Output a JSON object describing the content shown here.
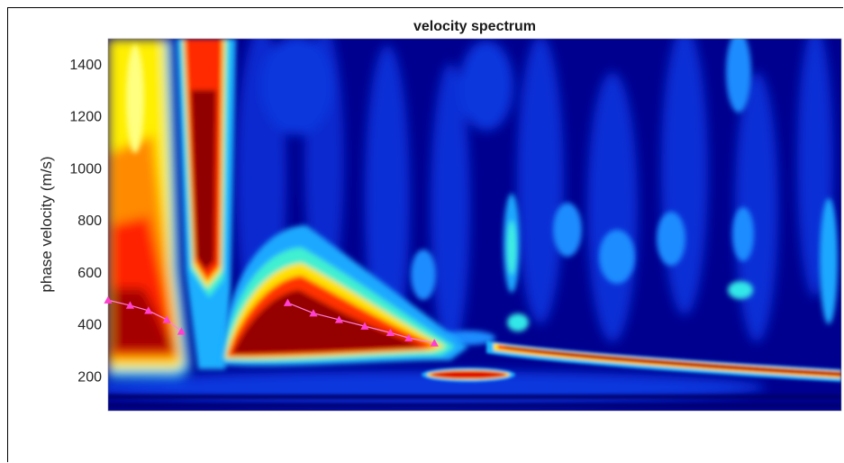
{
  "chart_data": {
    "type": "heatmap",
    "title": "velocity spectrum",
    "xlabel": "",
    "ylabel": "phase velocity (m/s)",
    "ylim": [
      70,
      1500
    ],
    "y_ticks": [
      200,
      400,
      600,
      800,
      1000,
      1200,
      1400
    ],
    "x_ticks": [],
    "colormap": "jet",
    "colors": {
      "background": "#00008f",
      "pick_marker": "#ff3fd0",
      "pick_line": "#ff7fe0"
    },
    "series": [
      {
        "values": [
          {
            "x": 0.0,
            "y": 495
          },
          {
            "x": 0.03,
            "y": 475
          },
          {
            "x": 0.055,
            "y": 455
          },
          {
            "x": 0.08,
            "y": 420
          },
          {
            "x": 0.1,
            "y": 375
          },
          {
            "x": 0.245,
            "y": 485
          },
          {
            "x": 0.28,
            "y": 445
          },
          {
            "x": 0.315,
            "y": 420
          },
          {
            "x": 0.35,
            "y": 395
          },
          {
            "x": 0.385,
            "y": 370
          },
          {
            "x": 0.41,
            "y": 350
          },
          {
            "x": 0.445,
            "y": 330
          }
        ]
      }
    ]
  }
}
